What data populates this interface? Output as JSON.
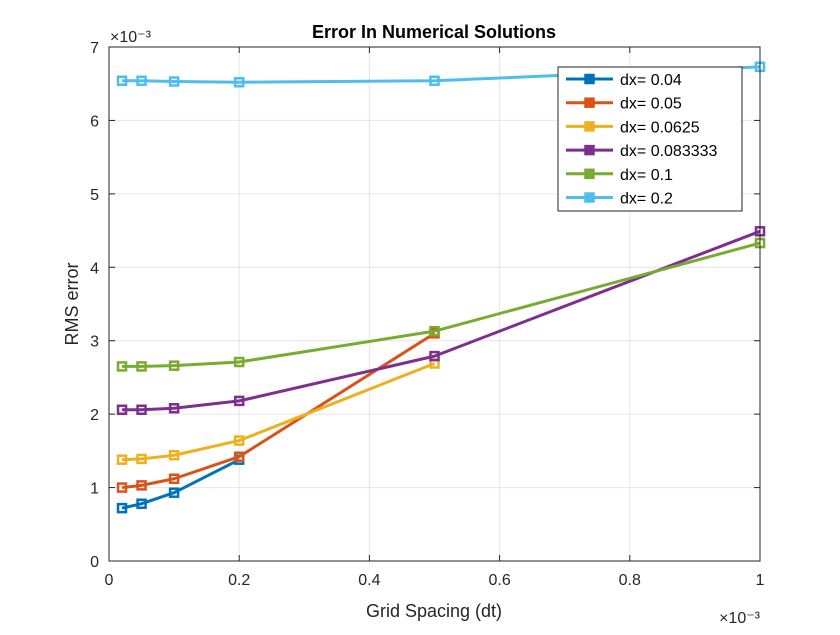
{
  "chart_data": {
    "type": "line",
    "title": "Error In Numerical Solutions",
    "xlabel": "Grid Spacing (dt)",
    "ylabel": "RMS error",
    "x_exponent": "×10⁻³",
    "y_exponent": "×10⁻³",
    "xlim": [
      0,
      1
    ],
    "ylim": [
      0,
      7
    ],
    "x_ticks": [
      "0",
      "0.2",
      "0.4",
      "0.6",
      "0.8",
      "1"
    ],
    "x_tick_values": [
      0,
      0.2,
      0.4,
      0.6,
      0.8,
      1
    ],
    "y_ticks": [
      "0",
      "1",
      "2",
      "3",
      "4",
      "5",
      "6",
      "7"
    ],
    "y_tick_values": [
      0,
      1,
      2,
      3,
      4,
      5,
      6,
      7
    ],
    "grid": true,
    "legend_position": "top-right",
    "series": [
      {
        "name": "dx= 0.04",
        "color": "#0072BD",
        "x": [
          0.02,
          0.05,
          0.1,
          0.2
        ],
        "y": [
          0.72,
          0.78,
          0.93,
          1.38
        ]
      },
      {
        "name": "dx= 0.05",
        "color": "#D95319",
        "x": [
          0.02,
          0.05,
          0.1,
          0.2,
          0.5
        ],
        "y": [
          1.0,
          1.03,
          1.12,
          1.42,
          3.1
        ]
      },
      {
        "name": "dx= 0.0625",
        "color": "#EDB120",
        "x": [
          0.02,
          0.05,
          0.1,
          0.2,
          0.5
        ],
        "y": [
          1.38,
          1.39,
          1.44,
          1.64,
          2.69
        ]
      },
      {
        "name": "dx= 0.083333",
        "color": "#7E2F8E",
        "x": [
          0.02,
          0.05,
          0.1,
          0.2,
          0.5,
          1.0
        ],
        "y": [
          2.06,
          2.06,
          2.08,
          2.18,
          2.79,
          4.49
        ]
      },
      {
        "name": "dx= 0.1",
        "color": "#77AC30",
        "x": [
          0.02,
          0.05,
          0.1,
          0.2,
          0.5,
          1.0
        ],
        "y": [
          2.65,
          2.65,
          2.66,
          2.71,
          3.13,
          4.33
        ]
      },
      {
        "name": "dx= 0.2",
        "color": "#4DBEEE",
        "x": [
          0.02,
          0.05,
          0.1,
          0.2,
          0.5,
          1.0
        ],
        "y": [
          6.54,
          6.54,
          6.53,
          6.52,
          6.54,
          6.73
        ]
      }
    ]
  }
}
